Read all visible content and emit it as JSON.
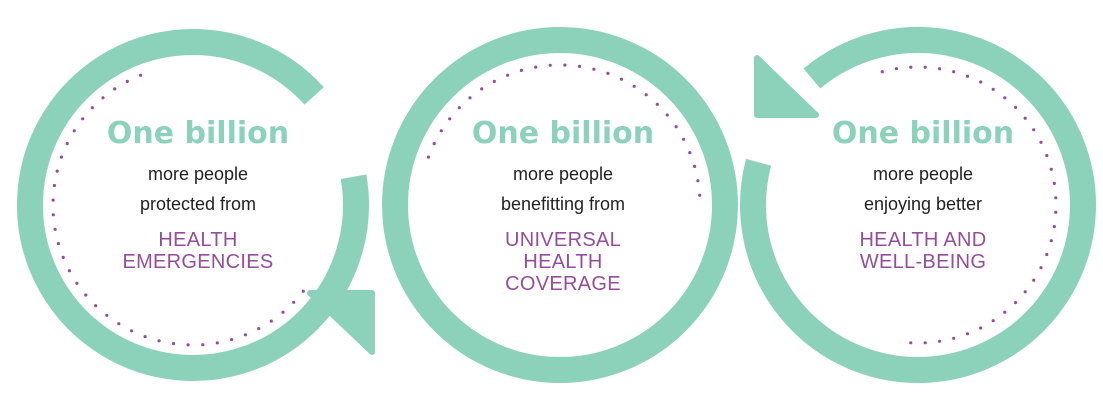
{
  "colors": {
    "ring": "#8cd2bb",
    "headline": "#8cd2bb",
    "accent": "#944d9d",
    "dots": "#944d9d",
    "body_text": "#222222"
  },
  "panels": [
    {
      "headline": "One billion",
      "line1": "more people",
      "line2": "protected from",
      "target_lines": [
        "HEALTH",
        "EMERGENCIES"
      ],
      "arrow": "bottom-right-arrowhead"
    },
    {
      "headline": "One billion",
      "line1": "more people",
      "line2": "benefitting from",
      "target_lines": [
        "UNIVERSAL",
        "HEALTH",
        "COVERAGE"
      ],
      "arrow": "none"
    },
    {
      "headline": "One billion",
      "line1": "more people",
      "line2": "enjoying better",
      "target_lines": [
        "HEALTH AND",
        "WELL-BEING"
      ],
      "arrow": "top-left-arrowhead"
    }
  ]
}
